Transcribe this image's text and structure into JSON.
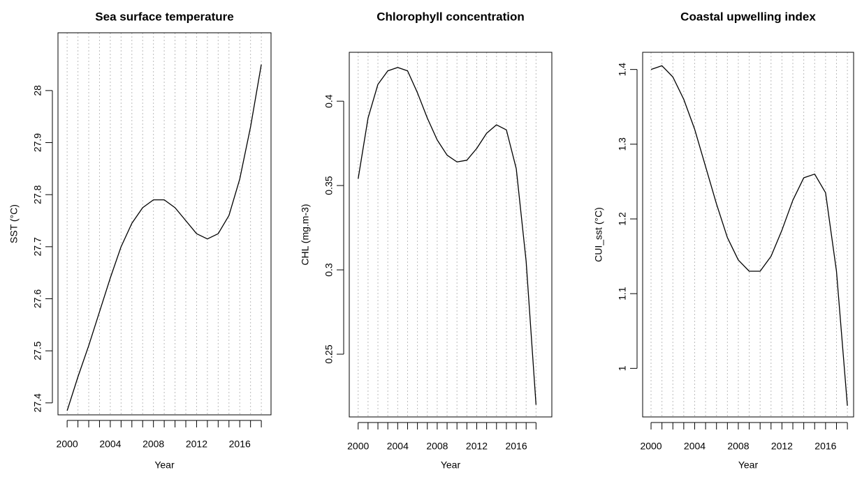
{
  "chart_data": [
    {
      "type": "line",
      "title": "Sea surface temperature",
      "x_label": "Year",
      "y_label": "SST (°C)",
      "x": [
        2000,
        2001,
        2002,
        2003,
        2004,
        2005,
        2006,
        2007,
        2008,
        2009,
        2010,
        2011,
        2012,
        2013,
        2014,
        2015,
        2016,
        2017,
        2018
      ],
      "series": [
        {
          "color": "#000000",
          "values": [
            27.385,
            27.45,
            27.51,
            27.575,
            27.64,
            27.7,
            27.745,
            27.775,
            27.79,
            27.79,
            27.775,
            27.75,
            27.725,
            27.715,
            27.725,
            27.76,
            27.83,
            27.93,
            28.05
          ]
        }
      ],
      "xlim": [
        1999.15,
        2018.9
      ],
      "xticks": [
        2000,
        2004,
        2008,
        2012,
        2016
      ],
      "ylim": [
        27.377,
        28.111
      ],
      "yticks": [
        27.4,
        27.5,
        27.6,
        27.7,
        27.8,
        27.9,
        28.0
      ],
      "grid": true
    },
    {
      "type": "line",
      "title": "Chlorophyll concentration",
      "x_label": "Year",
      "y_label": "CHL (mg.m-3)",
      "x": [
        2000,
        2001,
        2002,
        2003,
        2004,
        2005,
        2006,
        2007,
        2008,
        2009,
        2010,
        2011,
        2012,
        2013,
        2014,
        2015,
        2016,
        2017,
        2018
      ],
      "series": [
        {
          "color": "#000000",
          "values": [
            0.354,
            0.39,
            0.41,
            0.418,
            0.42,
            0.418,
            0.405,
            0.39,
            0.377,
            0.368,
            0.364,
            0.365,
            0.372,
            0.381,
            0.386,
            0.383,
            0.36,
            0.305,
            0.22
          ]
        }
      ],
      "xlim": [
        1999.1,
        2019.6
      ],
      "xticks": [
        2000,
        2004,
        2008,
        2012,
        2016
      ],
      "ylim": [
        0.2128,
        0.429
      ],
      "yticks": [
        0.25,
        0.3,
        0.35,
        0.4
      ],
      "grid": true
    },
    {
      "type": "line",
      "title": "Coastal upwelling index",
      "x_label": "Year",
      "y_label": "CUI_sst (°C)",
      "x": [
        2000,
        2001,
        2002,
        2003,
        2004,
        2005,
        2006,
        2007,
        2008,
        2009,
        2010,
        2011,
        2012,
        2013,
        2014,
        2015,
        2016,
        2017,
        2018
      ],
      "series": [
        {
          "color": "#000000",
          "values": [
            1.4,
            1.405,
            1.39,
            1.36,
            1.32,
            1.27,
            1.22,
            1.175,
            1.145,
            1.13,
            1.13,
            1.15,
            1.185,
            1.225,
            1.255,
            1.26,
            1.235,
            1.13,
            0.95
          ]
        }
      ],
      "xlim": [
        1999.23,
        2018.57
      ],
      "xticks": [
        2000,
        2004,
        2008,
        2012,
        2016
      ],
      "ylim": [
        0.935,
        1.423
      ],
      "yticks": [
        1.0,
        1.1,
        1.2,
        1.3,
        1.4
      ],
      "grid": true
    }
  ]
}
